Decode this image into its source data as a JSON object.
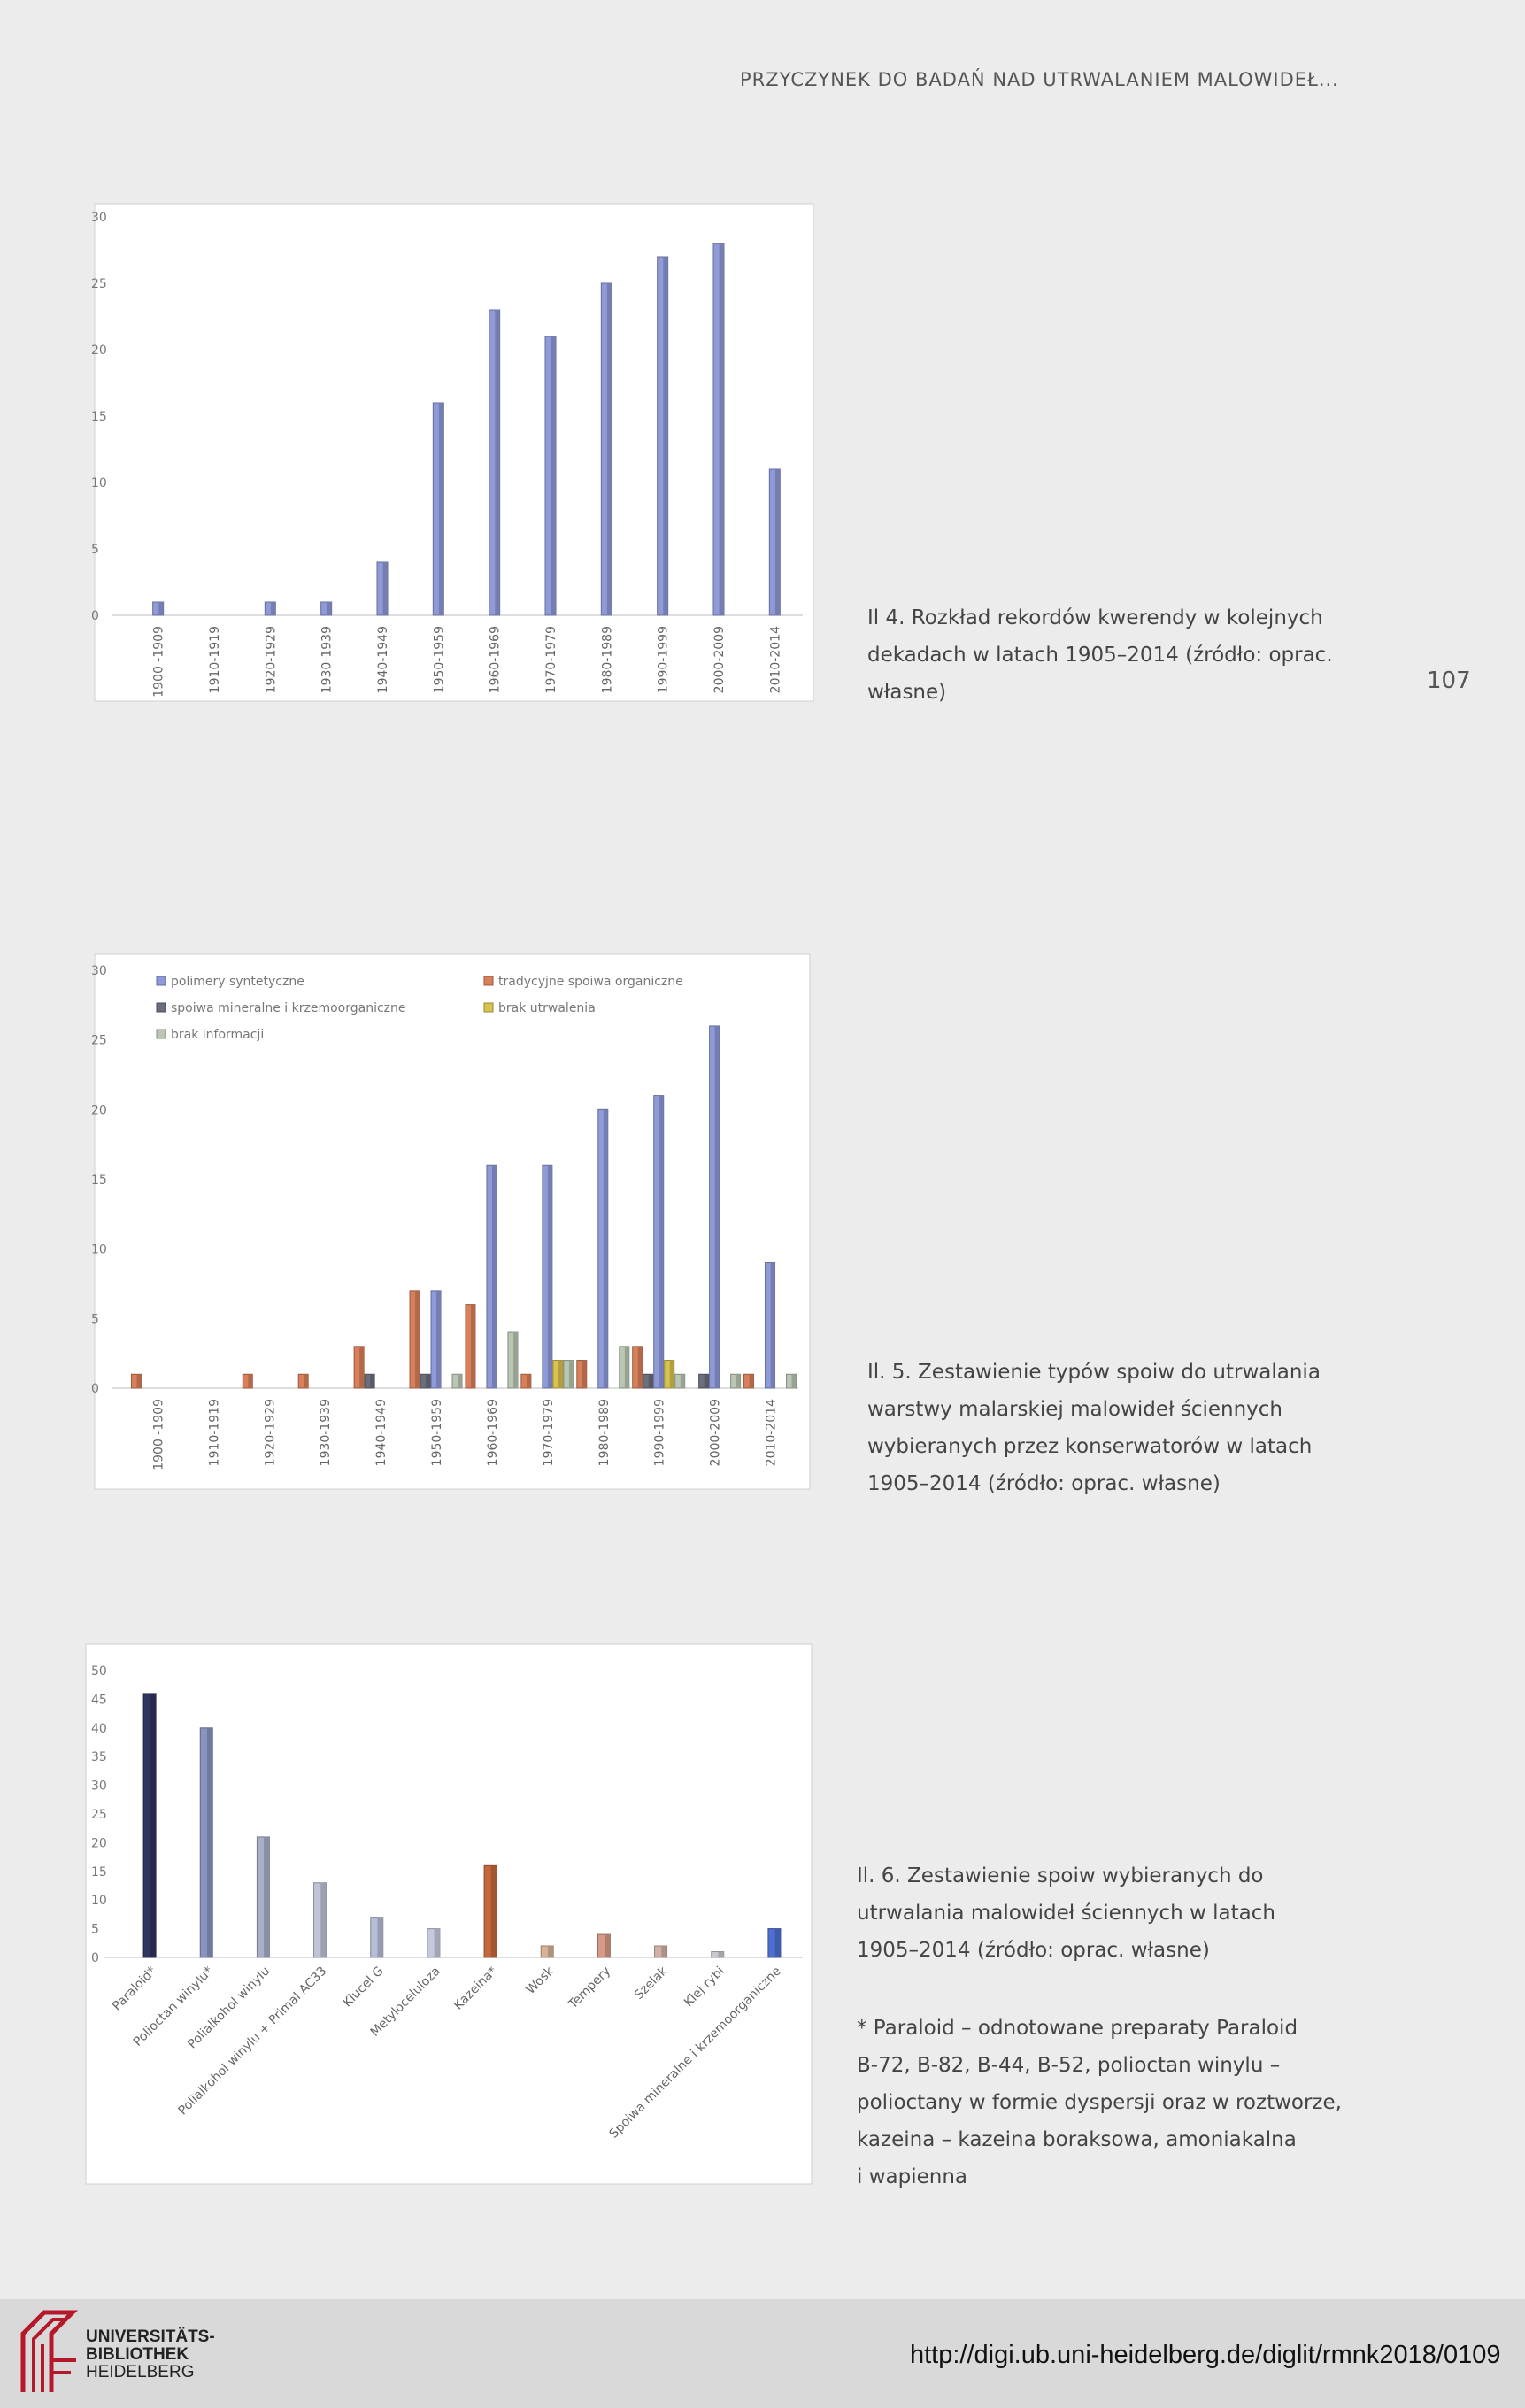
{
  "header": {
    "running_title": "PRZYCZYNEK DO BADAŃ NAD UTRWALANIEM MALOWIDEŁ...",
    "page_number": "107"
  },
  "figures": [
    {
      "caption": [
        "Il 4. Rozkład rekordów kwerendy w kolejnych",
        "dekadach w latach 1905–2014 (źródło: oprac.",
        "własne)"
      ]
    },
    {
      "caption": [
        "Il. 5. Zestawienie typów spoiw do utrwalania",
        "warstwy malarskiej malowideł ściennych",
        "wybieranych przez konserwatorów w latach",
        "1905–2014 (źródło: oprac. własne)"
      ]
    },
    {
      "caption": [
        "Il. 6. Zestawienie spoiw wybieranych do",
        "utrwalania malowideł ściennych w latach",
        "1905–2014 (źródło: oprac. własne)"
      ],
      "footnote": [
        "* Paraloid – odnotowane preparaty Paraloid",
        "B-72, B-82, B-44, B-52, polioctan winylu –",
        "polioctany w formie dyspersji oraz w roztworze,",
        "kazeina – kazeina boraksowa, amoniakalna",
        "i wapienna"
      ]
    }
  ],
  "chart_data": [
    {
      "type": "bar",
      "categories": [
        "1900 -1909",
        "1910-1919",
        "1920-1929",
        "1930-1939",
        "1940-1949",
        "1950-1959",
        "1960-1969",
        "1970-1979",
        "1980-1989",
        "1990-1999",
        "2000-2009",
        "2010-2014"
      ],
      "series": [
        {
          "color": "#8f9ad8",
          "values": [
            1,
            0,
            1,
            1,
            4,
            16,
            23,
            21,
            25,
            27,
            28,
            11
          ]
        }
      ],
      "ylim": [
        0,
        30
      ],
      "yticks": [
        0,
        5,
        10,
        15,
        20,
        25,
        30
      ],
      "grid": false
    },
    {
      "type": "bar",
      "categories": [
        "1900 -1909",
        "1910-1919",
        "1920-1929",
        "1930-1939",
        "1940-1949",
        "1950-1959",
        "1960-1969",
        "1970-1979",
        "1980-1989",
        "1990-1999",
        "2000-2009",
        "2010-2014"
      ],
      "series": [
        {
          "name": "polimery syntetyczne",
          "color": "#8f9ad8",
          "values": [
            0,
            0,
            0,
            0,
            0,
            7,
            16,
            16,
            20,
            21,
            26,
            9
          ]
        },
        {
          "name": "tradycyjne spoiwa organiczne",
          "color": "#d9805a",
          "values": [
            1,
            0,
            1,
            1,
            3,
            7,
            6,
            1,
            2,
            3,
            0,
            1
          ]
        },
        {
          "name": "spoiwa mineralne i krzemoorganiczne",
          "color": "#6b6f7d",
          "values": [
            0,
            0,
            0,
            0,
            1,
            1,
            0,
            0,
            0,
            1,
            1,
            0
          ]
        },
        {
          "name": "brak utrwalenia",
          "color": "#d9c24d",
          "values": [
            0,
            0,
            0,
            0,
            0,
            0,
            0,
            2,
            0,
            2,
            0,
            0
          ]
        },
        {
          "name": "brak informacji",
          "color": "#b9c7b4",
          "values": [
            0,
            0,
            0,
            0,
            0,
            1,
            4,
            2,
            3,
            1,
            1,
            1
          ]
        }
      ],
      "ylim": [
        0,
        30
      ],
      "yticks": [
        0,
        5,
        10,
        15,
        20,
        25,
        30
      ],
      "legend": "top",
      "grid": false
    },
    {
      "type": "bar",
      "categories": [
        "Paraloid*",
        "Polioctan winylu*",
        "Polialkohol winylu",
        "Polialkohol winylu + Primal AC33",
        "Klucel G",
        "Metyloceluloza",
        "Kazeina*",
        "Wosk",
        "Tempery",
        "Szelak",
        "Klej rybi",
        "Spoiwa mineralne i krzemoorganiczne"
      ],
      "values": [
        46,
        40,
        21,
        13,
        7,
        5,
        16,
        2,
        4,
        2,
        1,
        5
      ],
      "colors": [
        "#2f3660",
        "#8a94c0",
        "#a8b0c8",
        "#c0c4d6",
        "#b8bdd6",
        "#c5c9de",
        "#c4683c",
        "#d6b396",
        "#d69a86",
        "#d3b0a6",
        "#c7c9cf",
        "#4d6fd0"
      ],
      "ylim": [
        0,
        50
      ],
      "yticks": [
        0,
        5,
        10,
        15,
        20,
        25,
        30,
        35,
        40,
        45,
        50
      ],
      "grid": false
    }
  ],
  "footer": {
    "library_lines": [
      "UNIVERSITÄTS-",
      "BIBLIOTHEK",
      "HEIDELBERG"
    ],
    "url": "http://digi.ub.uni-heidelberg.de/diglit/rmnk2018/0109"
  }
}
